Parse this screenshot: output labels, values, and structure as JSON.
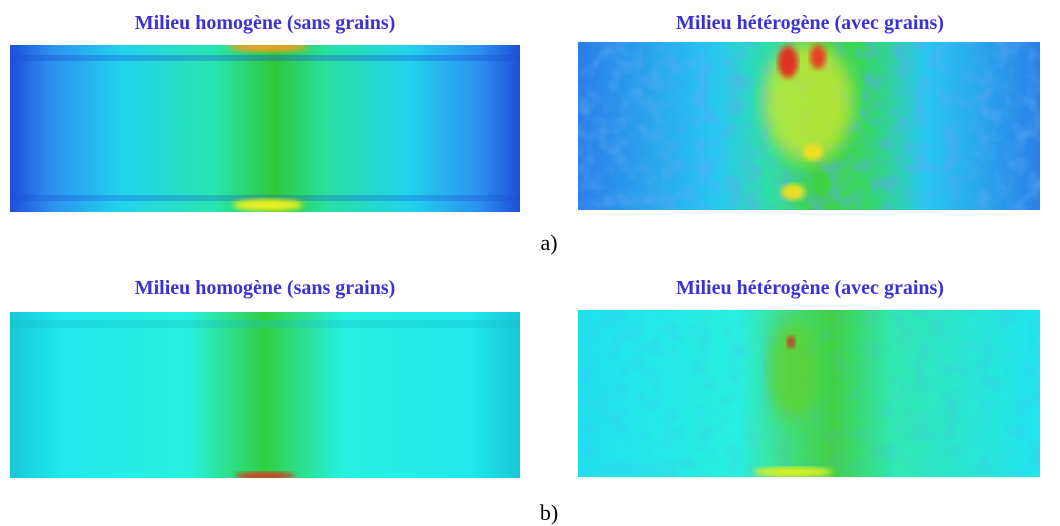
{
  "panels": [
    {
      "label": "a)",
      "images": [
        {
          "title": "Milieu homogène (sans grains)"
        },
        {
          "title": "Milieu hétérogène (avec grains)"
        }
      ]
    },
    {
      "label": "b)",
      "images": [
        {
          "title": "Milieu homogène (sans grains)"
        },
        {
          "title": "Milieu hétérogène (avec grains)"
        }
      ]
    }
  ]
}
